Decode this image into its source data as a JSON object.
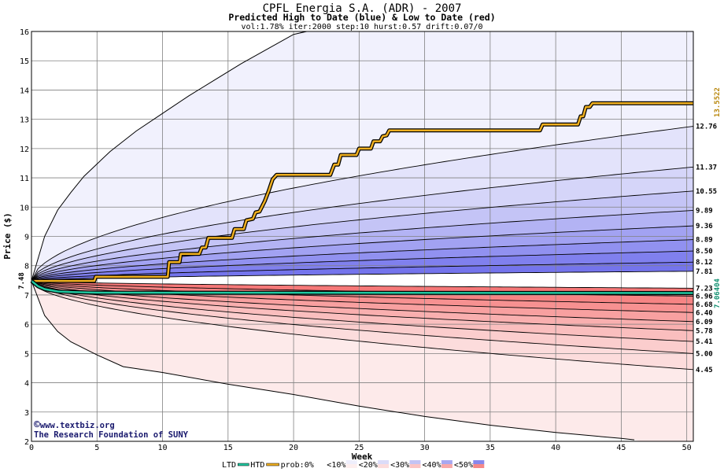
{
  "chart_data": {
    "type": "line",
    "title": "CPFL Energia S.A. (ADR) - 2007",
    "subtitle": "Predicted High to Date (blue) &  Low to Date (red)",
    "params": "vol:1.78% iter:2000 step:10 hurst:0.57 drift:0.07/0",
    "xlabel": "Week",
    "ylabel": "Price ($)",
    "xlim": [
      0,
      50.5
    ],
    "ylim": [
      2,
      16
    ],
    "x_ticks": [
      0,
      5,
      10,
      15,
      20,
      25,
      30,
      35,
      40,
      45,
      50
    ],
    "y_ticks": [
      2,
      3,
      4,
      5,
      6,
      7,
      8,
      9,
      10,
      11,
      12,
      13,
      14,
      15,
      16
    ],
    "grid": true,
    "start_price": 7.48,
    "start_label": "7.48",
    "upper_quantile_curves": [
      {
        "end": 12.76,
        "label": "12.76"
      },
      {
        "end": 11.37,
        "label": "11.37"
      },
      {
        "end": 10.55,
        "label": "10.55"
      },
      {
        "end": 9.89,
        "label": "9.89"
      },
      {
        "end": 9.36,
        "label": "9.36"
      },
      {
        "end": 8.89,
        "label": "8.89"
      },
      {
        "end": 8.5,
        "label": "8.50"
      },
      {
        "end": 8.12,
        "label": "8.12"
      },
      {
        "end": 7.81,
        "label": "7.81"
      }
    ],
    "lower_quantile_curves": [
      {
        "end": 7.23,
        "label": "7.23"
      },
      {
        "end": 6.96,
        "label": "6.96"
      },
      {
        "end": 6.68,
        "label": "6.68"
      },
      {
        "end": 6.4,
        "label": "6.40"
      },
      {
        "end": 6.09,
        "label": "6.09"
      },
      {
        "end": 5.78,
        "label": "5.78"
      },
      {
        "end": 5.41,
        "label": "5.41"
      },
      {
        "end": 5.0,
        "label": "5.00"
      },
      {
        "end": 4.45,
        "label": "4.45"
      }
    ],
    "envelope_upper": [
      [
        0,
        7.48
      ],
      [
        1,
        9.0
      ],
      [
        2,
        9.9
      ],
      [
        3,
        10.5
      ],
      [
        4,
        11.05
      ],
      [
        6,
        11.9
      ],
      [
        8,
        12.6
      ],
      [
        10,
        13.2
      ],
      [
        12,
        13.8
      ],
      [
        14,
        14.35
      ],
      [
        16,
        14.9
      ],
      [
        18,
        15.4
      ],
      [
        20,
        15.9
      ],
      [
        21,
        16.1
      ]
    ],
    "envelope_lower": [
      [
        0,
        7.48
      ],
      [
        1,
        6.3
      ],
      [
        2,
        5.75
      ],
      [
        3,
        5.4
      ],
      [
        5,
        4.95
      ],
      [
        7,
        4.55
      ],
      [
        10,
        4.35
      ],
      [
        15,
        3.95
      ],
      [
        20,
        3.6
      ],
      [
        25,
        3.2
      ],
      [
        30,
        2.85
      ],
      [
        35,
        2.55
      ],
      [
        40,
        2.3
      ],
      [
        45,
        2.1
      ],
      [
        46,
        2.05
      ]
    ],
    "series": [
      {
        "name": "HTD",
        "color": "#f0b020",
        "end_label": "13.5522",
        "points": [
          [
            0,
            7.48
          ],
          [
            4.8,
            7.48
          ],
          [
            4.9,
            7.62
          ],
          [
            10.4,
            7.62
          ],
          [
            10.5,
            8.12
          ],
          [
            11.3,
            8.12
          ],
          [
            11.4,
            8.4
          ],
          [
            12.8,
            8.4
          ],
          [
            13,
            8.62
          ],
          [
            13.3,
            8.62
          ],
          [
            13.5,
            8.95
          ],
          [
            15.3,
            8.95
          ],
          [
            15.5,
            9.25
          ],
          [
            16.2,
            9.25
          ],
          [
            16.4,
            9.55
          ],
          [
            16.9,
            9.6
          ],
          [
            17.1,
            9.82
          ],
          [
            17.4,
            9.85
          ],
          [
            17.8,
            10.2
          ],
          [
            18.1,
            10.55
          ],
          [
            18.4,
            10.95
          ],
          [
            18.7,
            11.1
          ],
          [
            22.8,
            11.1
          ],
          [
            23.1,
            11.45
          ],
          [
            23.4,
            11.45
          ],
          [
            23.6,
            11.78
          ],
          [
            24.8,
            11.78
          ],
          [
            25,
            12.0
          ],
          [
            25.9,
            12.0
          ],
          [
            26.1,
            12.25
          ],
          [
            26.6,
            12.25
          ],
          [
            26.8,
            12.42
          ],
          [
            27.1,
            12.45
          ],
          [
            27.3,
            12.62
          ],
          [
            38.8,
            12.62
          ],
          [
            39,
            12.82
          ],
          [
            41.7,
            12.82
          ],
          [
            41.9,
            13.1
          ],
          [
            42.1,
            13.1
          ],
          [
            42.3,
            13.42
          ],
          [
            42.6,
            13.42
          ],
          [
            42.8,
            13.55
          ],
          [
            50.5,
            13.55
          ]
        ]
      },
      {
        "name": "LTD",
        "color": "#20c8a0",
        "end_label": "7.06404",
        "points": [
          [
            0,
            7.48
          ],
          [
            0.5,
            7.3
          ],
          [
            1,
            7.2
          ],
          [
            2,
            7.12
          ],
          [
            3,
            7.1
          ],
          [
            5,
            7.08
          ],
          [
            50.5,
            7.065
          ]
        ]
      }
    ],
    "legend": {
      "items": [
        "LTD",
        "HTD",
        "prob:0%",
        "<10%",
        "<20%",
        "<30%",
        "<40%",
        "<50%"
      ],
      "ltd_color": "#20c8a0",
      "htd_color": "#f0b020",
      "swatches": [
        "#ffffff",
        "#eeeefc",
        "#dcdcf8",
        "#c4c4f4",
        "#a8a8f0",
        "#8888ec"
      ],
      "swatches_red": [
        "#ffffff",
        "#fdeeee",
        "#fcdcdc",
        "#fbc4c4",
        "#f8a8a8",
        "#f58888"
      ]
    },
    "upper_band_colors": [
      "#f1f1fd",
      "#e3e3fb",
      "#d5d5f9",
      "#c4c4f6",
      "#b3b3f4",
      "#a2a2f2",
      "#9191f0",
      "#8080ee",
      "#7474ec"
    ],
    "lower_band_colors": [
      "#fdeaea",
      "#fcdcdc",
      "#fbcdcd",
      "#fabebe",
      "#f9afaf",
      "#f8a0a0",
      "#f79191",
      "#f68484",
      "#f57878"
    ]
  },
  "credits": {
    "site": "www.textbiz.org",
    "org": "The Research Foundation of SUNY",
    "copyright_symbol": "©"
  }
}
